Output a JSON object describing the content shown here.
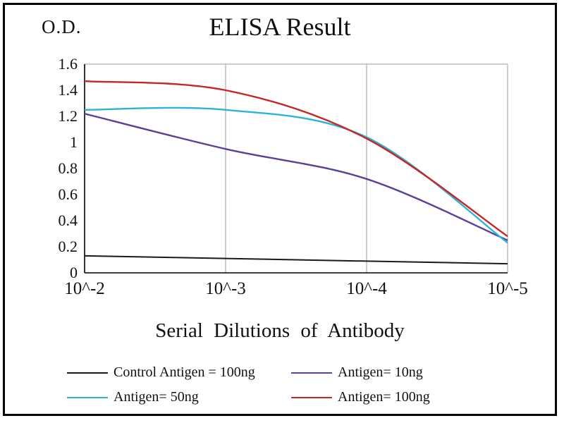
{
  "chart_data": {
    "type": "line",
    "title": "ELISA Result",
    "ylabel": "O.D.",
    "xlabel": "Serial Dilutions of Antibody",
    "x_scale": "log",
    "x_tick_labels": [
      "10^-2",
      "10^-3",
      "10^-4",
      "10^-5"
    ],
    "y_ticks": [
      0,
      0.2,
      0.4,
      0.6,
      0.8,
      1,
      1.2,
      1.4,
      1.6
    ],
    "y_tick_labels": [
      "0",
      "0.2",
      "0.4",
      "0.6",
      "0.8",
      "1",
      "1.2",
      "1.4",
      "1.6"
    ],
    "ylim": [
      0,
      1.6
    ],
    "grid": "vertical",
    "legend_position": "bottom",
    "colors": {
      "grid": "#9e9e9e",
      "axis": "#000000"
    },
    "series": [
      {
        "name": "Control Antigen = 100ng",
        "color": "#1a1a1a",
        "values": [
          0.13,
          0.11,
          0.09,
          0.07
        ]
      },
      {
        "name": "Antigen= 10ng",
        "color": "#5b3f98",
        "values": [
          1.22,
          0.95,
          0.72,
          0.25
        ]
      },
      {
        "name": "Antigen= 50ng",
        "color": "#2bb3d9",
        "values": [
          1.25,
          1.25,
          1.04,
          0.23
        ]
      },
      {
        "name": "Antigen= 100ng",
        "color": "#c52626",
        "values": [
          1.47,
          1.4,
          1.03,
          0.28
        ]
      }
    ]
  }
}
